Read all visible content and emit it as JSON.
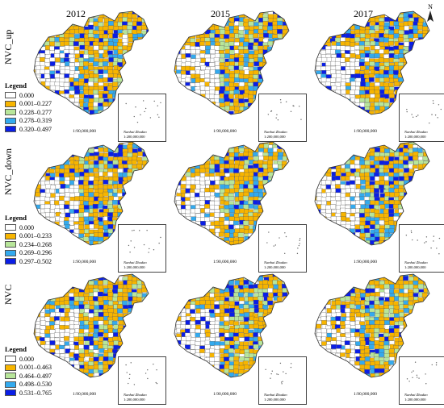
{
  "years": [
    "2012",
    "2015",
    "2017"
  ],
  "rows": [
    {
      "label": "NVC_up"
    },
    {
      "label": "NVC_down"
    },
    {
      "label": "NVC"
    }
  ],
  "legends": [
    {
      "title": "Legend",
      "classes": [
        "0.000",
        "0.001–0.227",
        "0.228–0.277",
        "0.278–0.319",
        "0.320–0.497"
      ]
    },
    {
      "title": "Legend",
      "classes": [
        "0.000",
        "0.001–0.233",
        "0.234–0.268",
        "0.269–0.296",
        "0.297–0.502"
      ]
    },
    {
      "title": "Legend",
      "classes": [
        "0.000",
        "0.001–0.463",
        "0.464–0.497",
        "0.498–0.530",
        "0.531–0.765"
      ]
    }
  ],
  "class_colors": [
    "#ffffff",
    "#f7b500",
    "#b8e69a",
    "#33aaee",
    "#0a1ee6"
  ],
  "scale_label": "1:90,000,000",
  "inset": {
    "name": "Nanhai Zhudao",
    "scale": "1:200,000,000"
  },
  "north_label": "N"
}
